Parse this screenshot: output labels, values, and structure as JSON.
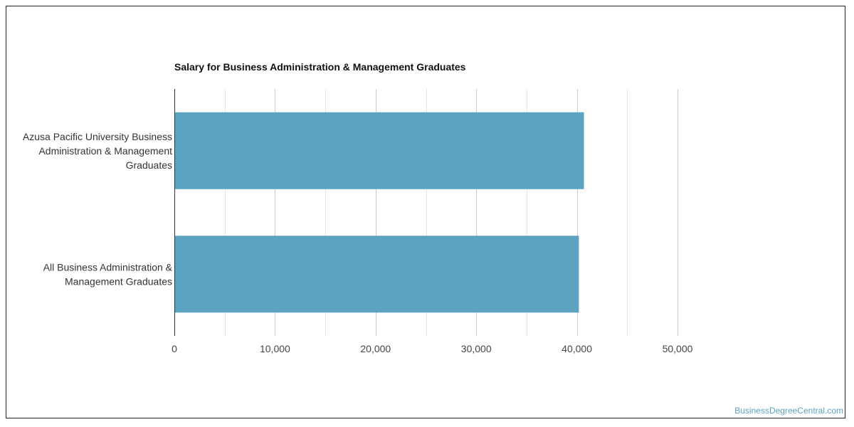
{
  "chart_data": {
    "type": "bar",
    "orientation": "horizontal",
    "title": "Salary for Business Administration & Management Graduates",
    "categories": [
      [
        "Azusa Pacific University Business",
        "Administration & Management",
        "Graduates"
      ],
      [
        "All Business Administration &",
        "Management Graduates"
      ]
    ],
    "values": [
      40700,
      40200
    ],
    "xlim": [
      0,
      50000
    ],
    "xticks": [
      0,
      10000,
      20000,
      30000,
      40000,
      50000
    ],
    "xtick_labels": [
      "0",
      "10,000",
      "20,000",
      "30,000",
      "40,000",
      "50,000"
    ],
    "grid": true,
    "bar_color": "#5ba3c0"
  },
  "watermark": "BusinessDegreeCentral.com"
}
